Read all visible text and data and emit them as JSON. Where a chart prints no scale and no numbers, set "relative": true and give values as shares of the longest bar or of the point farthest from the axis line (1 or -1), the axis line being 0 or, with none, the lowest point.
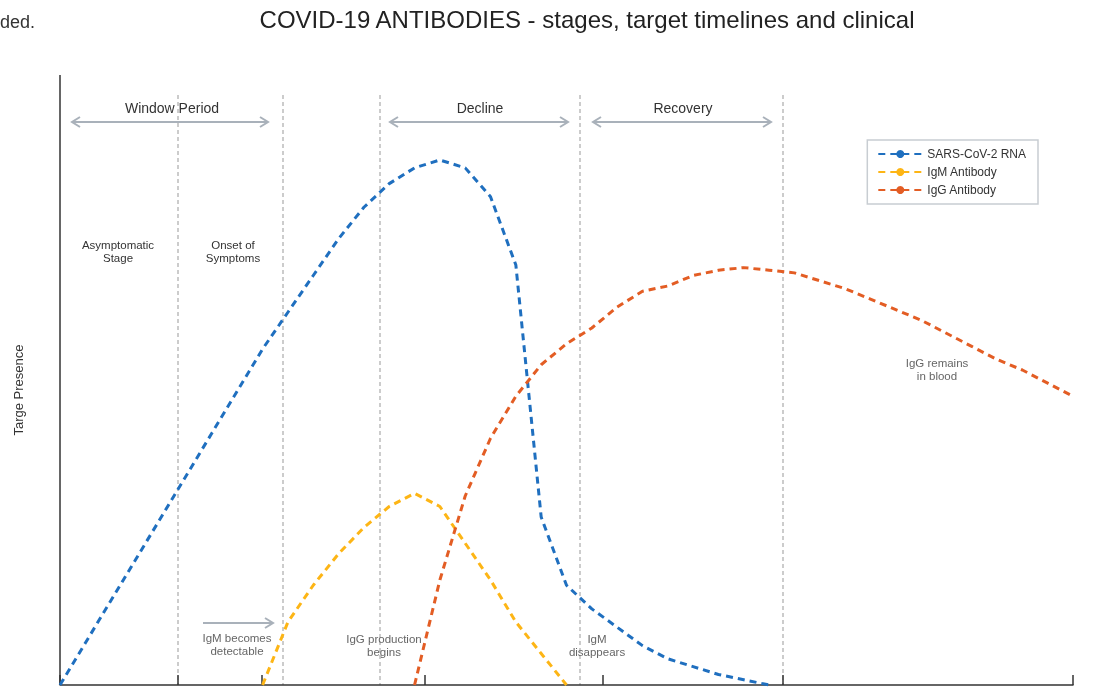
{
  "chart_data": {
    "type": "line",
    "relative": true,
    "title": "COVID-19 ANTIBODIES - stages, target timelines and clinical",
    "ylabel": "Targe Presence",
    "categories": [
      null,
      null,
      null,
      null,
      null,
      null,
      null,
      null,
      null,
      null,
      null,
      null,
      null,
      null,
      null,
      null,
      null,
      null,
      null,
      null,
      null,
      null,
      null,
      null,
      null,
      null,
      null,
      null,
      null,
      null,
      null,
      null,
      null,
      null,
      null,
      null,
      null,
      null,
      null,
      null,
      null
    ],
    "grid": false,
    "legend": "top right",
    "marker": "none",
    "line_style": "dashed",
    "series": [
      {
        "name": "SARS-CoV-2 RNA",
        "color": "#1f6fbf",
        "values": [
          0,
          0.08,
          0.16,
          0.24,
          0.32,
          0.4,
          0.48,
          0.56,
          0.64,
          0.71,
          0.78,
          0.85,
          0.91,
          0.955,
          0.985,
          1,
          0.985,
          0.93,
          0.8,
          0.32,
          0.19,
          0.145,
          0.11,
          0.075,
          0.05,
          0.035,
          0.02,
          0.01,
          0,
          null,
          null,
          null,
          null,
          null,
          null,
          null,
          null,
          null,
          null,
          null,
          null
        ]
      },
      {
        "name": "IgM Antibody",
        "color": "#fdb515",
        "values": [
          null,
          null,
          null,
          null,
          null,
          null,
          null,
          null,
          0,
          0.12,
          0.19,
          0.25,
          0.3,
          0.34,
          0.365,
          0.34,
          0.27,
          0.2,
          0.12,
          0.06,
          0,
          null,
          null,
          null,
          null,
          null,
          null,
          null,
          null,
          null,
          null,
          null,
          null,
          null,
          null,
          null,
          null,
          null,
          null,
          null,
          null
        ]
      },
      {
        "name": "IgG Antibody",
        "color": "#e35d24",
        "values": [
          null,
          null,
          null,
          null,
          null,
          null,
          null,
          null,
          null,
          null,
          null,
          null,
          null,
          null,
          0,
          0.2,
          0.36,
          0.47,
          0.55,
          0.61,
          0.65,
          0.68,
          0.72,
          0.75,
          0.76,
          0.78,
          0.79,
          0.795,
          0.79,
          0.785,
          0.77,
          0.755,
          0.735,
          0.715,
          0.695,
          0.67,
          0.645,
          0.62,
          0.6,
          0.575,
          0.55
        ]
      }
    ],
    "annotations": [
      "ded.",
      "Window Period",
      "Decline",
      "Recovery",
      "Asymptomatic\nStage",
      "Onset of\nSymptoms",
      "IgM becomes\ndetectable",
      "IgG production\nbegins",
      "IgM\ndisappears",
      "IgG remains\nin blood"
    ]
  }
}
